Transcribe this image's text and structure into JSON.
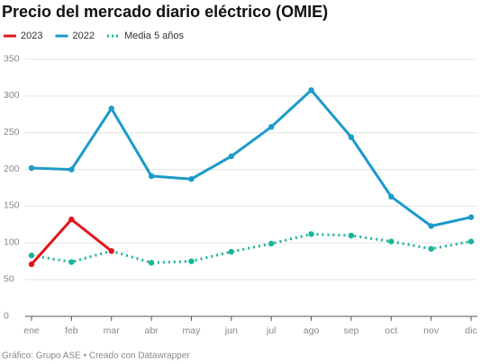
{
  "chart_data": {
    "type": "line",
    "title": "Precio del mercado diario eléctrico (OMIE)",
    "source": "Gráfico: Grupo ASE • Creado con Datawrapper",
    "categories": [
      "ene",
      "feb",
      "mar",
      "abr",
      "may",
      "jun",
      "jul",
      "ago",
      "sep",
      "oct",
      "nov",
      "dic"
    ],
    "series": [
      {
        "name": "2023",
        "color": "#e0161b",
        "line_style": "solid",
        "values": [
          71,
          132,
          89,
          null,
          null,
          null,
          null,
          null,
          null,
          null,
          null,
          null
        ]
      },
      {
        "name": "2022",
        "color": "#1c9ac9",
        "line_style": "solid",
        "values": [
          202,
          200,
          283,
          191,
          187,
          218,
          258,
          308,
          244,
          163,
          123,
          135
        ]
      },
      {
        "name": "Media 5 años",
        "color": "#18b59a",
        "line_style": "dotted",
        "values": [
          83,
          74,
          89,
          73,
          75,
          88,
          99,
          112,
          110,
          102,
          92,
          102
        ]
      }
    ],
    "ylim": [
      0,
      350
    ],
    "yticks": [
      0,
      50,
      100,
      150,
      200,
      250,
      300,
      350
    ],
    "grid": true
  }
}
